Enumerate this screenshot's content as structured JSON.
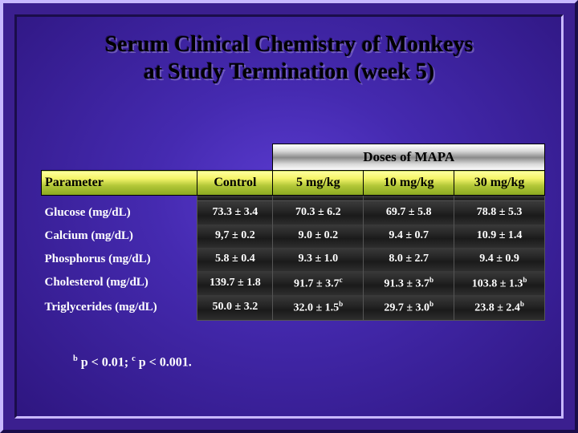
{
  "title_line1": "Serum Clinical Chemistry of Monkeys",
  "title_line2": "at Study Termination (week 5)",
  "banner_label": "Doses of MAPA",
  "columns": {
    "parameter": "Parameter",
    "control": "Control",
    "d5": "5 mg/kg",
    "d10": "10 mg/kg",
    "d30": "30 mg/kg"
  },
  "rows": [
    {
      "param": "Glucose (mg/dL)",
      "control": "73.3 ± 3.4",
      "d5": "70.3 ± 6.2",
      "d5_sup": "",
      "d10": "69.7 ± 5.8",
      "d10_sup": "",
      "d30": "78.8 ± 5.3",
      "d30_sup": ""
    },
    {
      "param": "Calcium (mg/dL)",
      "control": "9,7 ± 0.2",
      "d5": "9.0 ± 0.2",
      "d5_sup": "",
      "d10": "9.4 ± 0.7",
      "d10_sup": "",
      "d30": "10.9 ± 1.4",
      "d30_sup": ""
    },
    {
      "param": "Phosphorus (mg/dL)",
      "control": "5.8 ± 0.4",
      "d5": "9.3 ± 1.0",
      "d5_sup": "",
      "d10": "8.0 ± 2.7",
      "d10_sup": "",
      "d30": "9.4 ± 0.9",
      "d30_sup": ""
    },
    {
      "param": "Cholesterol (mg/dL)",
      "control": "139.7 ± 1.8",
      "d5": "91.7 ± 3.7",
      "d5_sup": "c",
      "d10": "91.3 ± 3.7",
      "d10_sup": "b",
      "d30": "103.8 ± 1.3",
      "d30_sup": "b"
    },
    {
      "param": "Triglycerides (mg/dL)",
      "control": "50.0 ± 3.2",
      "d5": "32.0 ± 1.5",
      "d5_sup": "b",
      "d10": "29.7 ± 3.0",
      "d10_sup": "b",
      "d30": "23.8 ± 2.4",
      "d30_sup": "b"
    }
  ],
  "footnote_html": "<sup>b</sup> p < 0.01; <sup>c</sup> p < 0.001.",
  "colors": {
    "background": "#3b1f8f",
    "bevel_light": "#c8b8ff",
    "bevel_dark": "#1a0d4a",
    "header_row_top": "#ffffa0",
    "header_row_bottom": "#8aa820",
    "banner_mid": "#8a8a8a",
    "body_cell": "#262626",
    "text_light": "#ffffff",
    "text_dark": "#000000"
  },
  "table_style": {
    "type": "table",
    "col_widths_pct": [
      31,
      15,
      18,
      18,
      18
    ],
    "title_fontsize": 28,
    "header_fontsize": 16,
    "body_fontsize": 14
  }
}
